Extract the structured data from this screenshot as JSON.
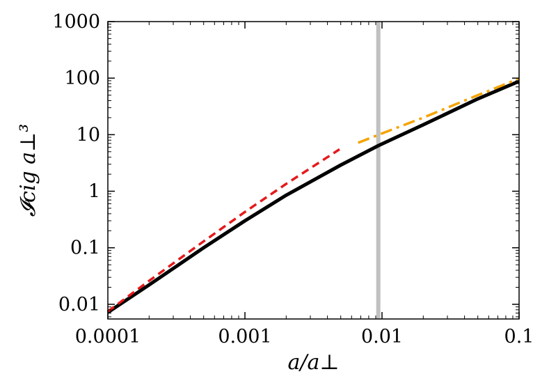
{
  "chart_data": {
    "type": "line",
    "xscale": "log",
    "yscale": "log",
    "xlim": [
      0.0001,
      0.1
    ],
    "ylim": [
      0.0055,
      1000
    ],
    "xticks": [
      0.0001,
      0.001,
      0.01,
      0.1
    ],
    "xtick_labels": [
      "0.0001",
      "0.001",
      "0.01",
      "0.1"
    ],
    "yticks": [
      0.01,
      0.1,
      1,
      10,
      100,
      1000
    ],
    "ytick_labels": [
      "0.01",
      "0.1",
      "1",
      "10",
      "100",
      "1000"
    ],
    "xlabel": "a/a⊥",
    "ylabel": "𝓘cig a⊥³",
    "grid": false,
    "series": [
      {
        "style": "solid",
        "color": "#000000",
        "x": [
          0.0001,
          0.0002,
          0.0005,
          0.001,
          0.002,
          0.005,
          0.0094,
          0.02,
          0.05,
          0.1
        ],
        "y": [
          0.0072,
          0.022,
          0.1,
          0.3,
          0.85,
          2.9,
          6.4,
          15,
          43,
          88
        ]
      },
      {
        "style": "dashed",
        "color": "#e41a1c",
        "x": [
          0.0001,
          0.0002,
          0.0005,
          0.001,
          0.002,
          0.0049
        ],
        "y": [
          0.0075,
          0.026,
          0.13,
          0.43,
          1.35,
          5.5
        ]
      },
      {
        "style": "dashdot",
        "color": "#f5a300",
        "x": [
          0.0067,
          0.01,
          0.02,
          0.05,
          0.1
        ],
        "y": [
          7.2,
          10.5,
          20,
          50,
          98
        ]
      }
    ],
    "vline": {
      "x": 0.0094,
      "color": "#c0c0c0"
    }
  }
}
